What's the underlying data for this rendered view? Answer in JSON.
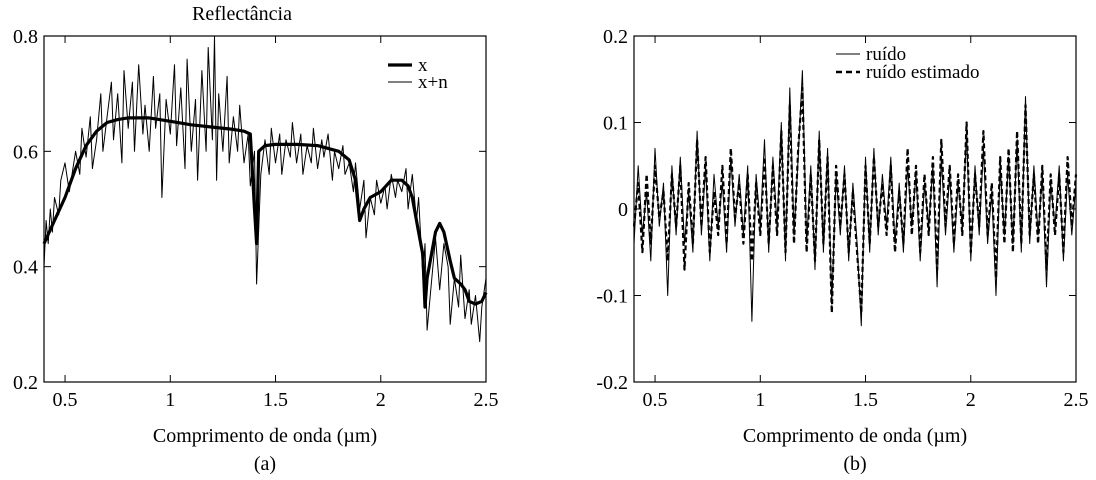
{
  "chart_data": [
    {
      "type": "line",
      "title": "Reflectância",
      "xlabel": "Comprimento de onda (µm)",
      "ylabel": "",
      "caption": "(a)",
      "xlim": [
        0.4,
        2.5
      ],
      "ylim": [
        0.2,
        0.8
      ],
      "xticks": [
        "0.5",
        "1",
        "1.5",
        "2",
        "2.5"
      ],
      "yticks": [
        "0.2",
        "0.4",
        "0.6",
        "0.8"
      ],
      "legend_position": "top-right",
      "series": [
        {
          "name": "x",
          "style": "thick-solid",
          "x": [
            0.4,
            0.45,
            0.5,
            0.55,
            0.6,
            0.65,
            0.7,
            0.75,
            0.8,
            0.9,
            1.0,
            1.1,
            1.2,
            1.3,
            1.35,
            1.38,
            1.4,
            1.41,
            1.42,
            1.45,
            1.5,
            1.6,
            1.7,
            1.8,
            1.85,
            1.88,
            1.9,
            1.92,
            1.95,
            2.0,
            2.05,
            2.1,
            2.13,
            2.15,
            2.18,
            2.2,
            2.21,
            2.22,
            2.24,
            2.26,
            2.28,
            2.3,
            2.33,
            2.35,
            2.38,
            2.4,
            2.42,
            2.45,
            2.48,
            2.5
          ],
          "y": [
            0.44,
            0.48,
            0.52,
            0.57,
            0.61,
            0.635,
            0.65,
            0.655,
            0.658,
            0.658,
            0.652,
            0.646,
            0.642,
            0.638,
            0.635,
            0.63,
            0.5,
            0.44,
            0.6,
            0.61,
            0.612,
            0.612,
            0.61,
            0.6,
            0.585,
            0.55,
            0.48,
            0.5,
            0.52,
            0.53,
            0.55,
            0.55,
            0.54,
            0.52,
            0.46,
            0.42,
            0.33,
            0.38,
            0.42,
            0.46,
            0.475,
            0.46,
            0.41,
            0.38,
            0.37,
            0.36,
            0.34,
            0.335,
            0.34,
            0.355
          ]
        },
        {
          "name": "x+n",
          "style": "thin-solid",
          "x": [
            0.4,
            0.41,
            0.42,
            0.43,
            0.44,
            0.45,
            0.47,
            0.48,
            0.5,
            0.52,
            0.55,
            0.57,
            0.58,
            0.6,
            0.62,
            0.63,
            0.65,
            0.67,
            0.68,
            0.7,
            0.72,
            0.73,
            0.75,
            0.77,
            0.78,
            0.8,
            0.82,
            0.83,
            0.85,
            0.87,
            0.88,
            0.9,
            0.92,
            0.93,
            0.95,
            0.96,
            0.98,
            1.0,
            1.02,
            1.03,
            1.05,
            1.07,
            1.08,
            1.1,
            1.12,
            1.13,
            1.15,
            1.17,
            1.18,
            1.2,
            1.21,
            1.22,
            1.23,
            1.25,
            1.27,
            1.28,
            1.3,
            1.32,
            1.33,
            1.35,
            1.37,
            1.38,
            1.4,
            1.41,
            1.43,
            1.45,
            1.47,
            1.48,
            1.5,
            1.52,
            1.53,
            1.55,
            1.57,
            1.58,
            1.6,
            1.62,
            1.63,
            1.65,
            1.67,
            1.68,
            1.7,
            1.72,
            1.73,
            1.75,
            1.77,
            1.78,
            1.8,
            1.82,
            1.83,
            1.85,
            1.87,
            1.88,
            1.9,
            1.92,
            1.93,
            1.95,
            1.97,
            1.98,
            2.0,
            2.02,
            2.03,
            2.05,
            2.07,
            2.08,
            2.1,
            2.12,
            2.13,
            2.15,
            2.17,
            2.18,
            2.2,
            2.21,
            2.22,
            2.24,
            2.26,
            2.28,
            2.3,
            2.32,
            2.33,
            2.35,
            2.37,
            2.38,
            2.4,
            2.42,
            2.43,
            2.45,
            2.47,
            2.48,
            2.5
          ],
          "y": [
            0.4,
            0.48,
            0.44,
            0.5,
            0.46,
            0.52,
            0.49,
            0.55,
            0.58,
            0.53,
            0.6,
            0.56,
            0.64,
            0.59,
            0.66,
            0.57,
            0.62,
            0.7,
            0.6,
            0.66,
            0.72,
            0.62,
            0.7,
            0.58,
            0.74,
            0.64,
            0.72,
            0.6,
            0.75,
            0.63,
            0.68,
            0.6,
            0.73,
            0.64,
            0.7,
            0.52,
            0.69,
            0.63,
            0.75,
            0.61,
            0.71,
            0.57,
            0.76,
            0.6,
            0.69,
            0.55,
            0.74,
            0.6,
            0.78,
            0.62,
            0.8,
            0.55,
            0.7,
            0.6,
            0.73,
            0.58,
            0.66,
            0.6,
            0.68,
            0.58,
            0.63,
            0.54,
            0.6,
            0.37,
            0.56,
            0.62,
            0.56,
            0.64,
            0.58,
            0.63,
            0.56,
            0.62,
            0.59,
            0.65,
            0.58,
            0.63,
            0.56,
            0.61,
            0.58,
            0.64,
            0.57,
            0.62,
            0.59,
            0.63,
            0.55,
            0.6,
            0.57,
            0.61,
            0.56,
            0.58,
            0.53,
            0.58,
            0.5,
            0.55,
            0.45,
            0.52,
            0.49,
            0.55,
            0.51,
            0.54,
            0.5,
            0.56,
            0.52,
            0.55,
            0.53,
            0.57,
            0.5,
            0.56,
            0.48,
            0.52,
            0.38,
            0.44,
            0.29,
            0.37,
            0.45,
            0.36,
            0.44,
            0.4,
            0.3,
            0.38,
            0.33,
            0.42,
            0.31,
            0.36,
            0.3,
            0.35,
            0.27,
            0.33,
            0.38
          ]
        }
      ]
    },
    {
      "type": "line",
      "title": "",
      "xlabel": "Comprimento de onda (µm)",
      "ylabel": "",
      "caption": "(b)",
      "xlim": [
        0.4,
        2.5
      ],
      "ylim": [
        -0.2,
        0.2
      ],
      "xticks": [
        "0.5",
        "1",
        "1.5",
        "2",
        "2.5"
      ],
      "yticks": [
        "-0.2",
        "-0.1",
        "0",
        "0.1",
        "0.2"
      ],
      "legend_position": "top-right",
      "series": [
        {
          "name": "ruído",
          "style": "thin-solid",
          "x": [
            0.4,
            0.42,
            0.44,
            0.46,
            0.48,
            0.5,
            0.52,
            0.54,
            0.56,
            0.58,
            0.6,
            0.62,
            0.64,
            0.66,
            0.68,
            0.7,
            0.72,
            0.74,
            0.76,
            0.78,
            0.8,
            0.82,
            0.84,
            0.86,
            0.88,
            0.9,
            0.92,
            0.94,
            0.96,
            0.98,
            1.0,
            1.02,
            1.04,
            1.06,
            1.08,
            1.1,
            1.12,
            1.14,
            1.16,
            1.18,
            1.2,
            1.22,
            1.24,
            1.26,
            1.28,
            1.3,
            1.32,
            1.34,
            1.36,
            1.38,
            1.4,
            1.42,
            1.44,
            1.46,
            1.48,
            1.5,
            1.52,
            1.54,
            1.56,
            1.58,
            1.6,
            1.62,
            1.64,
            1.66,
            1.68,
            1.7,
            1.72,
            1.74,
            1.76,
            1.78,
            1.8,
            1.82,
            1.84,
            1.86,
            1.88,
            1.9,
            1.92,
            1.94,
            1.96,
            1.98,
            2.0,
            2.02,
            2.04,
            2.06,
            2.08,
            2.1,
            2.12,
            2.14,
            2.16,
            2.18,
            2.2,
            2.22,
            2.24,
            2.26,
            2.28,
            2.3,
            2.32,
            2.34,
            2.36,
            2.38,
            2.4,
            2.42,
            2.44,
            2.46,
            2.48,
            2.5
          ],
          "y": [
            -0.04,
            0.05,
            -0.03,
            0.02,
            -0.06,
            0.07,
            -0.02,
            0.03,
            -0.1,
            0.05,
            -0.03,
            0.06,
            -0.04,
            0.02,
            -0.05,
            0.09,
            -0.03,
            0.05,
            -0.06,
            0.04,
            -0.02,
            0.03,
            -0.05,
            0.06,
            -0.02,
            0.04,
            -0.03,
            0.05,
            -0.13,
            0.04,
            -0.02,
            0.08,
            -0.05,
            0.06,
            -0.02,
            0.1,
            -0.06,
            0.14,
            -0.03,
            0.06,
            0.16,
            -0.04,
            0.05,
            -0.07,
            0.09,
            -0.05,
            0.07,
            -0.11,
            0.04,
            -0.03,
            0.05,
            -0.06,
            0.03,
            -0.04,
            -0.135,
            0.06,
            -0.05,
            0.07,
            -0.03,
            0.04,
            -0.02,
            0.06,
            -0.04,
            0.03,
            -0.05,
            0.05,
            -0.02,
            0.04,
            -0.06,
            0.03,
            -0.02,
            0.05,
            -0.09,
            0.06,
            -0.03,
            0.04,
            -0.05,
            0.03,
            -0.02,
            0.09,
            -0.06,
            0.05,
            -0.03,
            0.07,
            -0.04,
            0.02,
            -0.1,
            0.05,
            -0.03,
            0.06,
            -0.04,
            0.08,
            -0.05,
            0.13,
            -0.04,
            0.05,
            -0.03,
            0.04,
            -0.09,
            0.03,
            -0.02,
            0.05,
            -0.06,
            0.04,
            -0.03,
            0.03
          ]
        },
        {
          "name": "ruído estimado",
          "style": "thick-dashed",
          "x": [
            0.4,
            0.42,
            0.44,
            0.46,
            0.48,
            0.5,
            0.52,
            0.54,
            0.56,
            0.58,
            0.6,
            0.62,
            0.64,
            0.66,
            0.68,
            0.7,
            0.72,
            0.74,
            0.76,
            0.78,
            0.8,
            0.82,
            0.84,
            0.86,
            0.88,
            0.9,
            0.92,
            0.94,
            0.96,
            0.98,
            1.0,
            1.02,
            1.04,
            1.06,
            1.08,
            1.1,
            1.12,
            1.14,
            1.16,
            1.18,
            1.2,
            1.22,
            1.24,
            1.26,
            1.28,
            1.3,
            1.32,
            1.34,
            1.36,
            1.38,
            1.4,
            1.42,
            1.44,
            1.46,
            1.48,
            1.5,
            1.52,
            1.54,
            1.56,
            1.58,
            1.6,
            1.62,
            1.64,
            1.66,
            1.68,
            1.7,
            1.72,
            1.74,
            1.76,
            1.78,
            1.8,
            1.82,
            1.84,
            1.86,
            1.88,
            1.9,
            1.92,
            1.94,
            1.96,
            1.98,
            2.0,
            2.02,
            2.04,
            2.06,
            2.08,
            2.1,
            2.12,
            2.14,
            2.16,
            2.18,
            2.2,
            2.22,
            2.24,
            2.26,
            2.28,
            2.3,
            2.32,
            2.34,
            2.36,
            2.38,
            2.4,
            2.42,
            2.44,
            2.46,
            2.48,
            2.5
          ],
          "y": [
            -0.02,
            0.03,
            -0.05,
            0.04,
            -0.04,
            0.05,
            -0.01,
            0.02,
            -0.06,
            0.04,
            -0.02,
            0.05,
            -0.07,
            0.03,
            -0.04,
            0.08,
            -0.02,
            0.06,
            -0.05,
            0.02,
            -0.03,
            0.05,
            -0.04,
            0.07,
            -0.01,
            0.03,
            -0.04,
            0.04,
            -0.06,
            0.03,
            -0.03,
            0.06,
            -0.04,
            0.05,
            -0.03,
            0.09,
            -0.05,
            0.12,
            -0.04,
            0.07,
            0.14,
            -0.05,
            0.04,
            -0.06,
            0.08,
            -0.04,
            0.06,
            -0.12,
            0.05,
            -0.02,
            0.04,
            -0.05,
            0.02,
            -0.05,
            -0.12,
            0.05,
            -0.04,
            0.06,
            -0.02,
            0.03,
            -0.03,
            0.05,
            -0.05,
            0.02,
            -0.04,
            0.07,
            -0.03,
            0.05,
            -0.05,
            0.04,
            -0.03,
            0.06,
            -0.07,
            0.08,
            -0.02,
            0.05,
            -0.04,
            0.04,
            -0.03,
            0.1,
            -0.05,
            0.04,
            -0.02,
            0.09,
            -0.03,
            0.03,
            -0.08,
            0.06,
            -0.04,
            0.07,
            -0.05,
            0.09,
            -0.04,
            0.12,
            -0.03,
            0.04,
            -0.04,
            0.05,
            -0.07,
            0.04,
            -0.03,
            0.04,
            -0.05,
            0.06,
            -0.02,
            0.04
          ]
        }
      ]
    }
  ]
}
